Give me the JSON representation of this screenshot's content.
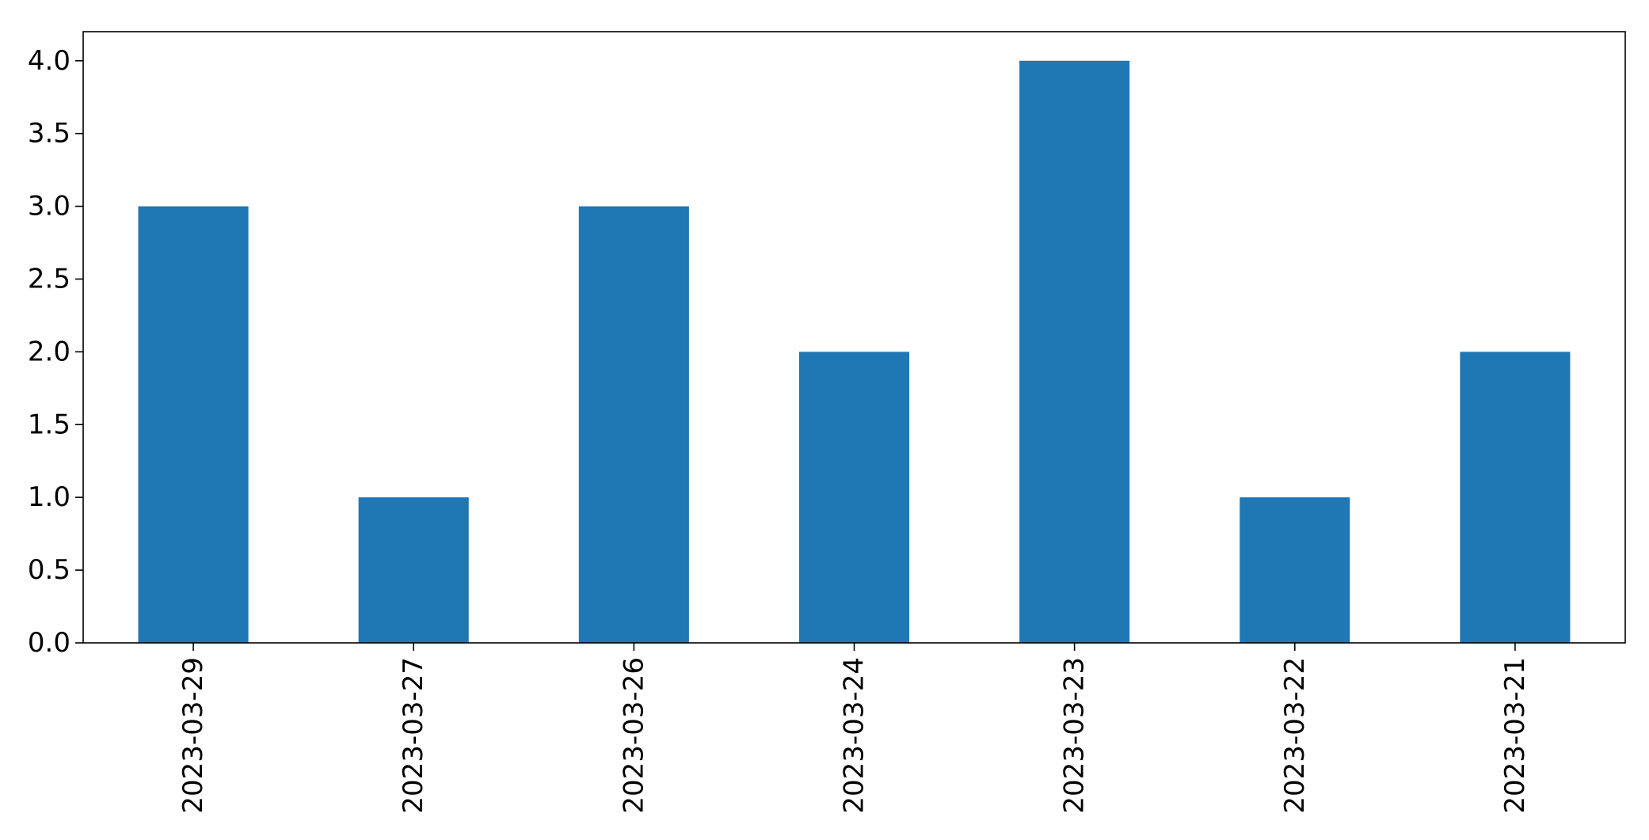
{
  "chart_data": {
    "type": "bar",
    "categories": [
      "2023-03-29",
      "2023-03-27",
      "2023-03-26",
      "2023-03-24",
      "2023-03-23",
      "2023-03-22",
      "2023-03-21"
    ],
    "values": [
      3,
      1,
      3,
      2,
      4,
      1,
      2
    ],
    "title": "",
    "xlabel": "",
    "ylabel": "",
    "ylim": [
      0,
      4.2
    ],
    "yticks": [
      "0.0",
      "0.5",
      "1.0",
      "1.5",
      "2.0",
      "2.5",
      "3.0",
      "3.5",
      "4.0"
    ],
    "grid": false,
    "bar_color": "#1f77b4"
  }
}
